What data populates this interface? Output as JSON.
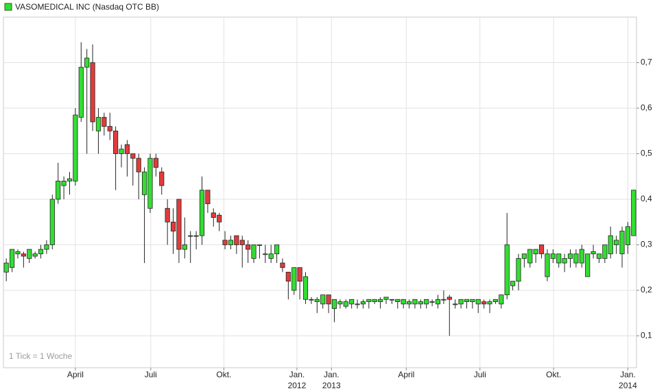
{
  "chart_data": {
    "type": "candlestick",
    "legend": "VASOMEDICAL INC (Nasdaq OTC BB)",
    "annotation": "1 Tick = 1 Woche",
    "up_color": "#33dd33",
    "down_color": "#e03c3c",
    "grid": true,
    "ylim": [
      0.03,
      0.8
    ],
    "yticks": [
      {
        "value": 0.1,
        "label": "0,1"
      },
      {
        "value": 0.2,
        "label": "0,2"
      },
      {
        "value": 0.3,
        "label": "0,3"
      },
      {
        "value": 0.4,
        "label": "0,4"
      },
      {
        "value": 0.5,
        "label": "0,5"
      },
      {
        "value": 0.6,
        "label": "0,6"
      },
      {
        "value": 0.7,
        "label": "0,7"
      }
    ],
    "xlim": [
      -0.5,
      109.5
    ],
    "xticks": [
      {
        "value": 12,
        "label": "April"
      },
      {
        "value": 25.1,
        "label": "Juli"
      },
      {
        "value": 37.8,
        "label": "Okt."
      },
      {
        "value": 50.5,
        "label": "Jan.\n2012"
      },
      {
        "value": 56.5,
        "label": "Jan.\n2013"
      },
      {
        "value": 69.5,
        "label": "April"
      },
      {
        "value": 82.3,
        "label": "Juli"
      },
      {
        "value": 95.1,
        "label": "Okt."
      },
      {
        "value": 108,
        "label": "Jan.\n2014"
      }
    ],
    "open": [
      0.24,
      0.25,
      0.28,
      0.28,
      0.27,
      0.275,
      0.28,
      0.29,
      0.3,
      0.4,
      0.43,
      0.44,
      0.44,
      0.58,
      0.69,
      0.7,
      0.55,
      0.58,
      0.56,
      0.55,
      0.5,
      0.52,
      0.5,
      0.49,
      0.41,
      0.38,
      0.49,
      0.46,
      0.38,
      0.35,
      0.4,
      0.29,
      0.32,
      0.32,
      0.32,
      0.42,
      0.37,
      0.365,
      0.31,
      0.3,
      0.32,
      0.31,
      0.3,
      0.27,
      0.3,
      0.28,
      0.27,
      0.28,
      0.26,
      0.24,
      0.2,
      0.25,
      0.18,
      0.18,
      0.175,
      0.17,
      0.19,
      0.16,
      0.17,
      0.165,
      0.17,
      0.17,
      0.17,
      0.175,
      0.175,
      0.175,
      0.18,
      0.18,
      0.175,
      0.17,
      0.17,
      0.17,
      0.17,
      0.17,
      0.175,
      0.17,
      0.18,
      0.185,
      0.17,
      0.17,
      0.175,
      0.175,
      0.17,
      0.175,
      0.17,
      0.175,
      0.17,
      0.19,
      0.21,
      0.22,
      0.27,
      0.26,
      0.28,
      0.3,
      0.23,
      0.27,
      0.26,
      0.26,
      0.27,
      0.26,
      0.26,
      0.23,
      0.28,
      0.27,
      0.27,
      0.28,
      0.3,
      0.28,
      0.3,
      0.32
    ],
    "high": [
      0.27,
      0.29,
      0.29,
      0.285,
      0.29,
      0.285,
      0.3,
      0.31,
      0.41,
      0.48,
      0.45,
      0.46,
      0.6,
      0.745,
      0.73,
      0.74,
      0.6,
      0.59,
      0.59,
      0.56,
      0.52,
      0.53,
      0.5,
      0.5,
      0.47,
      0.5,
      0.5,
      0.47,
      0.4,
      0.38,
      0.4,
      0.36,
      0.33,
      0.33,
      0.45,
      0.42,
      0.38,
      0.37,
      0.33,
      0.32,
      0.32,
      0.32,
      0.31,
      0.3,
      0.3,
      0.3,
      0.3,
      0.3,
      0.27,
      0.24,
      0.25,
      0.25,
      0.24,
      0.185,
      0.185,
      0.19,
      0.19,
      0.18,
      0.18,
      0.18,
      0.18,
      0.18,
      0.18,
      0.18,
      0.18,
      0.185,
      0.185,
      0.18,
      0.18,
      0.18,
      0.18,
      0.18,
      0.18,
      0.18,
      0.18,
      0.19,
      0.2,
      0.19,
      0.18,
      0.18,
      0.18,
      0.18,
      0.18,
      0.18,
      0.18,
      0.18,
      0.19,
      0.37,
      0.22,
      0.28,
      0.28,
      0.29,
      0.29,
      0.3,
      0.29,
      0.29,
      0.28,
      0.28,
      0.29,
      0.29,
      0.3,
      0.28,
      0.3,
      0.28,
      0.3,
      0.34,
      0.32,
      0.34,
      0.35,
      0.42
    ],
    "low": [
      0.22,
      0.24,
      0.27,
      0.25,
      0.26,
      0.27,
      0.27,
      0.28,
      0.29,
      0.39,
      0.4,
      0.41,
      0.43,
      0.57,
      0.5,
      0.55,
      0.5,
      0.54,
      0.53,
      0.42,
      0.47,
      0.45,
      0.43,
      0.4,
      0.26,
      0.37,
      0.45,
      0.41,
      0.3,
      0.28,
      0.26,
      0.27,
      0.26,
      0.29,
      0.3,
      0.37,
      0.34,
      0.33,
      0.29,
      0.29,
      0.28,
      0.25,
      0.26,
      0.26,
      0.27,
      0.26,
      0.26,
      0.26,
      0.24,
      0.18,
      0.19,
      0.18,
      0.17,
      0.17,
      0.15,
      0.16,
      0.15,
      0.13,
      0.16,
      0.16,
      0.16,
      0.16,
      0.16,
      0.16,
      0.17,
      0.16,
      0.17,
      0.17,
      0.16,
      0.16,
      0.16,
      0.16,
      0.16,
      0.16,
      0.165,
      0.16,
      0.17,
      0.1,
      0.16,
      0.16,
      0.16,
      0.16,
      0.15,
      0.16,
      0.15,
      0.17,
      0.16,
      0.18,
      0.2,
      0.2,
      0.25,
      0.25,
      0.26,
      0.27,
      0.22,
      0.26,
      0.25,
      0.24,
      0.25,
      0.25,
      0.25,
      0.23,
      0.27,
      0.26,
      0.26,
      0.27,
      0.28,
      0.25,
      0.28,
      0.32
    ],
    "close": [
      0.26,
      0.29,
      0.285,
      0.275,
      0.29,
      0.28,
      0.29,
      0.3,
      0.4,
      0.44,
      0.44,
      0.445,
      0.585,
      0.69,
      0.71,
      0.57,
      0.58,
      0.56,
      0.55,
      0.5,
      0.51,
      0.5,
      0.49,
      0.46,
      0.46,
      0.49,
      0.47,
      0.43,
      0.35,
      0.33,
      0.29,
      0.3,
      0.32,
      0.32,
      0.42,
      0.39,
      0.36,
      0.35,
      0.3,
      0.31,
      0.3,
      0.3,
      0.29,
      0.3,
      0.3,
      0.28,
      0.28,
      0.3,
      0.25,
      0.22,
      0.25,
      0.22,
      0.23,
      0.18,
      0.18,
      0.19,
      0.17,
      0.18,
      0.175,
      0.175,
      0.18,
      0.17,
      0.175,
      0.18,
      0.18,
      0.18,
      0.185,
      0.18,
      0.18,
      0.18,
      0.175,
      0.18,
      0.175,
      0.18,
      0.175,
      0.18,
      0.18,
      0.18,
      0.17,
      0.18,
      0.18,
      0.18,
      0.18,
      0.17,
      0.175,
      0.18,
      0.19,
      0.3,
      0.22,
      0.27,
      0.28,
      0.29,
      0.29,
      0.28,
      0.28,
      0.28,
      0.28,
      0.27,
      0.28,
      0.28,
      0.29,
      0.28,
      0.285,
      0.28,
      0.3,
      0.32,
      0.31,
      0.33,
      0.34,
      0.42
    ]
  }
}
